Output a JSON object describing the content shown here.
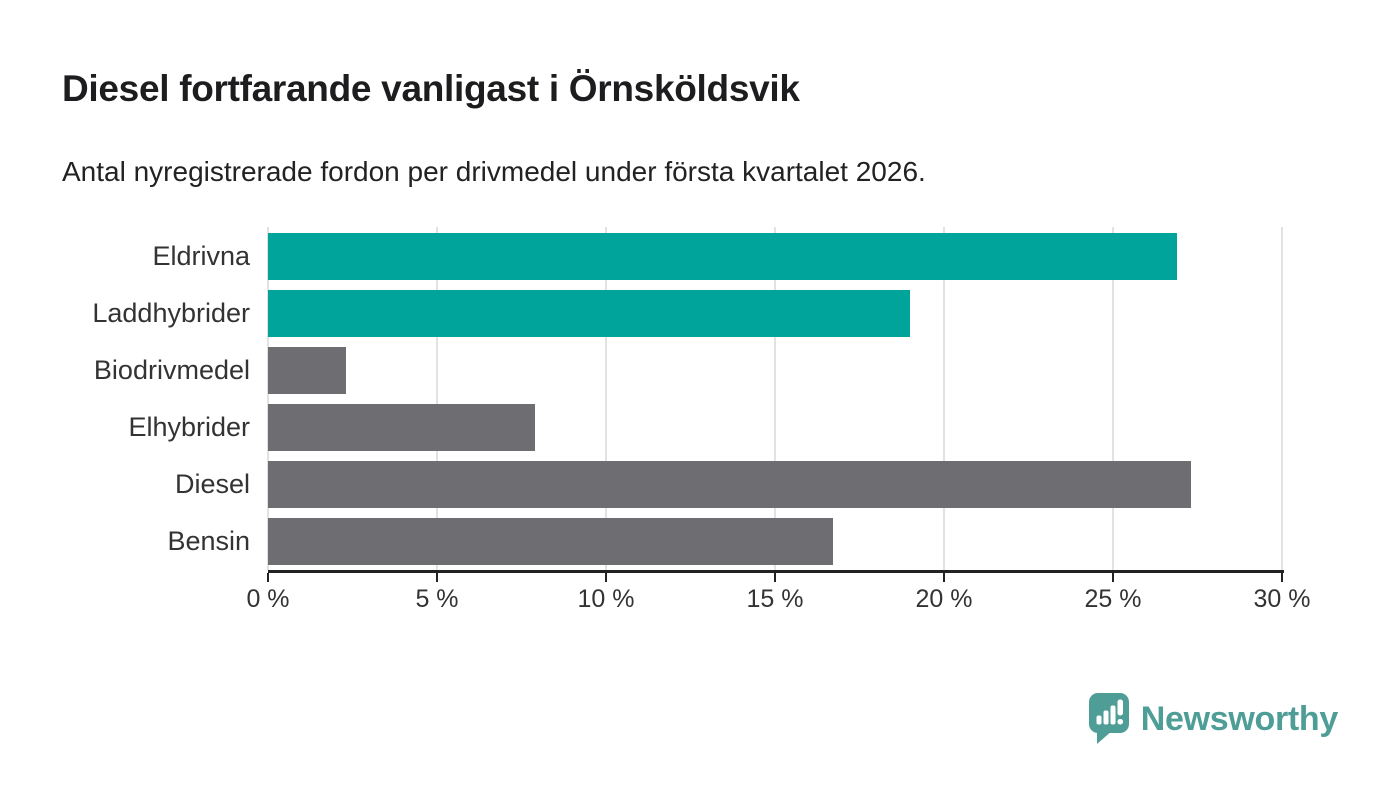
{
  "header": {
    "title": "Diesel fortfarande vanligast i Örnsköldsvik",
    "subtitle": "Antal nyregistrerade fordon per drivmedel under första kvartalet 2026."
  },
  "chart_data": {
    "type": "bar",
    "orientation": "horizontal",
    "title": "Diesel fortfarande vanligast i Örnsköldsvik",
    "subtitle": "Antal nyregistrerade fordon per drivmedel under första kvartalet 2026.",
    "categories": [
      "Eldrivna",
      "Laddhybrider",
      "Biodrivmedel",
      "Elhybrider",
      "Diesel",
      "Bensin"
    ],
    "values": [
      26.9,
      19.0,
      2.3,
      7.9,
      27.3,
      16.7
    ],
    "unit": "%",
    "bar_colors": [
      "#00a49b",
      "#00a49b",
      "#6e6e72",
      "#6e6e72",
      "#6e6e72",
      "#6e6e72"
    ],
    "xlim": [
      0,
      30
    ],
    "x_tick_values": [
      0,
      5,
      10,
      15,
      20,
      25,
      30
    ],
    "x_tick_labels": [
      "0 %",
      "5 %",
      "10 %",
      "15 %",
      "20 %",
      "25 %",
      "30 %"
    ],
    "xlabel": "",
    "ylabel": "",
    "grid": "vertical",
    "legend": "none"
  },
  "branding": {
    "logo_text": "Newsworthy",
    "logo_color": "#4e9d97"
  },
  "colors": {
    "teal": "#00a49b",
    "gray": "#6e6e72",
    "grid": "#e2e2e2",
    "axis": "#222222",
    "text": "#1d1d1f"
  }
}
